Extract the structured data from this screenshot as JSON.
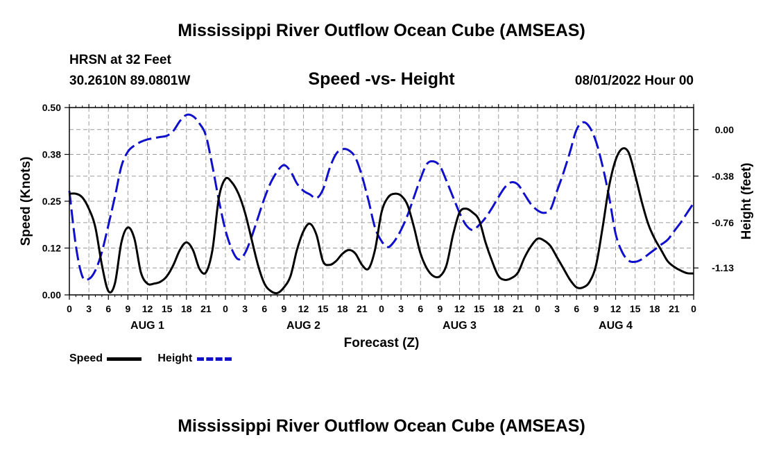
{
  "header": {
    "title": "Mississippi River Outflow Ocean Cube (AMSEAS)",
    "station": "HRSN at 32 Feet",
    "coords": "30.2610N  89.0801W",
    "subtitle": "Speed -vs- Height",
    "datetime": "08/01/2022 Hour 00"
  },
  "footer": {
    "title": "Mississippi River Outflow Ocean Cube (AMSEAS)"
  },
  "legend": {
    "speed_label": "Speed",
    "height_label": "Height"
  },
  "chart_data": {
    "type": "line",
    "xlabel": "Forecast (Z)",
    "ylabel_left": "Speed (Knots)",
    "ylabel_right": "Height (feet)",
    "x_range_hours": [
      0,
      96
    ],
    "ylim_left": [
      0,
      0.5
    ],
    "ylim_right": [
      -1.35,
      0.18
    ],
    "left_ticks": [
      "0.00",
      "0.12",
      "0.25",
      "0.38",
      "0.50"
    ],
    "left_tick_values": [
      0,
      0.125,
      0.25,
      0.375,
      0.5
    ],
    "right_ticks": [
      "0.00",
      "-0.38",
      "-0.76",
      "-1.13"
    ],
    "right_tick_values": [
      0,
      -0.38,
      -0.76,
      -1.13
    ],
    "hour_labels": [
      "0",
      "3",
      "6",
      "9",
      "12",
      "15",
      "18",
      "21"
    ],
    "days": [
      {
        "label": "AUG 1",
        "center_hour": 12
      },
      {
        "label": "AUG 2",
        "center_hour": 36
      },
      {
        "label": "AUG 3",
        "center_hour": 60
      },
      {
        "label": "AUG 4",
        "center_hour": 84
      }
    ],
    "series": [
      {
        "name": "Speed",
        "axis": "left",
        "color": "#000000",
        "dash": "solid",
        "points": [
          [
            0,
            0.27
          ],
          [
            1,
            0.27
          ],
          [
            2,
            0.26
          ],
          [
            3,
            0.23
          ],
          [
            4,
            0.18
          ],
          [
            5,
            0.08
          ],
          [
            6,
            0.01
          ],
          [
            7,
            0.03
          ],
          [
            8,
            0.14
          ],
          [
            9,
            0.18
          ],
          [
            10,
            0.15
          ],
          [
            11,
            0.06
          ],
          [
            12,
            0.03
          ],
          [
            13,
            0.03
          ],
          [
            14,
            0.035
          ],
          [
            15,
            0.05
          ],
          [
            16,
            0.08
          ],
          [
            17,
            0.12
          ],
          [
            18,
            0.14
          ],
          [
            19,
            0.12
          ],
          [
            20,
            0.07
          ],
          [
            21,
            0.06
          ],
          [
            22,
            0.12
          ],
          [
            23,
            0.26
          ],
          [
            24,
            0.31
          ],
          [
            25,
            0.3
          ],
          [
            26,
            0.27
          ],
          [
            27,
            0.22
          ],
          [
            28,
            0.15
          ],
          [
            29,
            0.08
          ],
          [
            30,
            0.03
          ],
          [
            31,
            0.01
          ],
          [
            32,
            0.005
          ],
          [
            33,
            0.02
          ],
          [
            34,
            0.05
          ],
          [
            35,
            0.12
          ],
          [
            36,
            0.17
          ],
          [
            37,
            0.19
          ],
          [
            38,
            0.16
          ],
          [
            39,
            0.09
          ],
          [
            40,
            0.08
          ],
          [
            41,
            0.09
          ],
          [
            42,
            0.11
          ],
          [
            43,
            0.12
          ],
          [
            44,
            0.11
          ],
          [
            45,
            0.08
          ],
          [
            46,
            0.07
          ],
          [
            47,
            0.12
          ],
          [
            48,
            0.22
          ],
          [
            49,
            0.26
          ],
          [
            50,
            0.27
          ],
          [
            51,
            0.265
          ],
          [
            52,
            0.24
          ],
          [
            53,
            0.18
          ],
          [
            54,
            0.11
          ],
          [
            55,
            0.07
          ],
          [
            56,
            0.05
          ],
          [
            57,
            0.05
          ],
          [
            58,
            0.08
          ],
          [
            59,
            0.16
          ],
          [
            60,
            0.22
          ],
          [
            61,
            0.23
          ],
          [
            62,
            0.22
          ],
          [
            63,
            0.2
          ],
          [
            64,
            0.14
          ],
          [
            65,
            0.09
          ],
          [
            66,
            0.05
          ],
          [
            67,
            0.04
          ],
          [
            68,
            0.045
          ],
          [
            69,
            0.06
          ],
          [
            70,
            0.1
          ],
          [
            71,
            0.13
          ],
          [
            72,
            0.15
          ],
          [
            73,
            0.145
          ],
          [
            74,
            0.13
          ],
          [
            75,
            0.1
          ],
          [
            76,
            0.07
          ],
          [
            77,
            0.04
          ],
          [
            78,
            0.02
          ],
          [
            79,
            0.02
          ],
          [
            80,
            0.035
          ],
          [
            81,
            0.08
          ],
          [
            82,
            0.18
          ],
          [
            83,
            0.29
          ],
          [
            84,
            0.36
          ],
          [
            85,
            0.39
          ],
          [
            86,
            0.38
          ],
          [
            87,
            0.32
          ],
          [
            88,
            0.25
          ],
          [
            89,
            0.19
          ],
          [
            90,
            0.15
          ],
          [
            91,
            0.12
          ],
          [
            92,
            0.09
          ],
          [
            93,
            0.075
          ],
          [
            94,
            0.065
          ],
          [
            95,
            0.058
          ],
          [
            96,
            0.057
          ]
        ]
      },
      {
        "name": "Height",
        "axis": "right",
        "color": "#1010cc",
        "dash": "dashed",
        "points": [
          [
            0,
            -0.5
          ],
          [
            1,
            -0.95
          ],
          [
            2,
            -1.2
          ],
          [
            3,
            -1.22
          ],
          [
            4,
            -1.15
          ],
          [
            5,
            -1.0
          ],
          [
            6,
            -0.78
          ],
          [
            7,
            -0.55
          ],
          [
            8,
            -0.3
          ],
          [
            9,
            -0.18
          ],
          [
            10,
            -0.13
          ],
          [
            11,
            -0.1
          ],
          [
            12,
            -0.08
          ],
          [
            13,
            -0.07
          ],
          [
            14,
            -0.06
          ],
          [
            15,
            -0.05
          ],
          [
            16,
            -0.01
          ],
          [
            17,
            0.07
          ],
          [
            18,
            0.12
          ],
          [
            19,
            0.11
          ],
          [
            20,
            0.05
          ],
          [
            21,
            -0.05
          ],
          [
            22,
            -0.3
          ],
          [
            23,
            -0.58
          ],
          [
            24,
            -0.82
          ],
          [
            25,
            -0.98
          ],
          [
            26,
            -1.06
          ],
          [
            27,
            -1.01
          ],
          [
            28,
            -0.88
          ],
          [
            29,
            -0.72
          ],
          [
            30,
            -0.56
          ],
          [
            31,
            -0.43
          ],
          [
            32,
            -0.34
          ],
          [
            33,
            -0.29
          ],
          [
            34,
            -0.34
          ],
          [
            35,
            -0.44
          ],
          [
            36,
            -0.5
          ],
          [
            37,
            -0.53
          ],
          [
            38,
            -0.56
          ],
          [
            39,
            -0.49
          ],
          [
            40,
            -0.32
          ],
          [
            41,
            -0.2
          ],
          [
            42,
            -0.16
          ],
          [
            43,
            -0.17
          ],
          [
            44,
            -0.23
          ],
          [
            45,
            -0.38
          ],
          [
            46,
            -0.58
          ],
          [
            47,
            -0.8
          ],
          [
            48,
            -0.91
          ],
          [
            49,
            -0.96
          ],
          [
            50,
            -0.91
          ],
          [
            51,
            -0.82
          ],
          [
            52,
            -0.7
          ],
          [
            53,
            -0.55
          ],
          [
            54,
            -0.4
          ],
          [
            55,
            -0.28
          ],
          [
            56,
            -0.26
          ],
          [
            57,
            -0.3
          ],
          [
            58,
            -0.42
          ],
          [
            59,
            -0.55
          ],
          [
            60,
            -0.68
          ],
          [
            61,
            -0.78
          ],
          [
            62,
            -0.82
          ],
          [
            63,
            -0.78
          ],
          [
            64,
            -0.72
          ],
          [
            65,
            -0.64
          ],
          [
            66,
            -0.55
          ],
          [
            67,
            -0.47
          ],
          [
            68,
            -0.43
          ],
          [
            69,
            -0.45
          ],
          [
            70,
            -0.53
          ],
          [
            71,
            -0.61
          ],
          [
            72,
            -0.66
          ],
          [
            73,
            -0.68
          ],
          [
            74,
            -0.65
          ],
          [
            75,
            -0.5
          ],
          [
            76,
            -0.35
          ],
          [
            77,
            -0.18
          ],
          [
            78,
            0.0
          ],
          [
            79,
            0.06
          ],
          [
            80,
            0.02
          ],
          [
            81,
            -0.1
          ],
          [
            82,
            -0.3
          ],
          [
            83,
            -0.55
          ],
          [
            84,
            -0.85
          ],
          [
            85,
            -1.0
          ],
          [
            86,
            -1.07
          ],
          [
            87,
            -1.08
          ],
          [
            88,
            -1.06
          ],
          [
            89,
            -1.02
          ],
          [
            90,
            -0.98
          ],
          [
            91,
            -0.94
          ],
          [
            92,
            -0.9
          ],
          [
            93,
            -0.83
          ],
          [
            94,
            -0.76
          ],
          [
            95,
            -0.68
          ],
          [
            96,
            -0.6
          ]
        ]
      }
    ]
  }
}
